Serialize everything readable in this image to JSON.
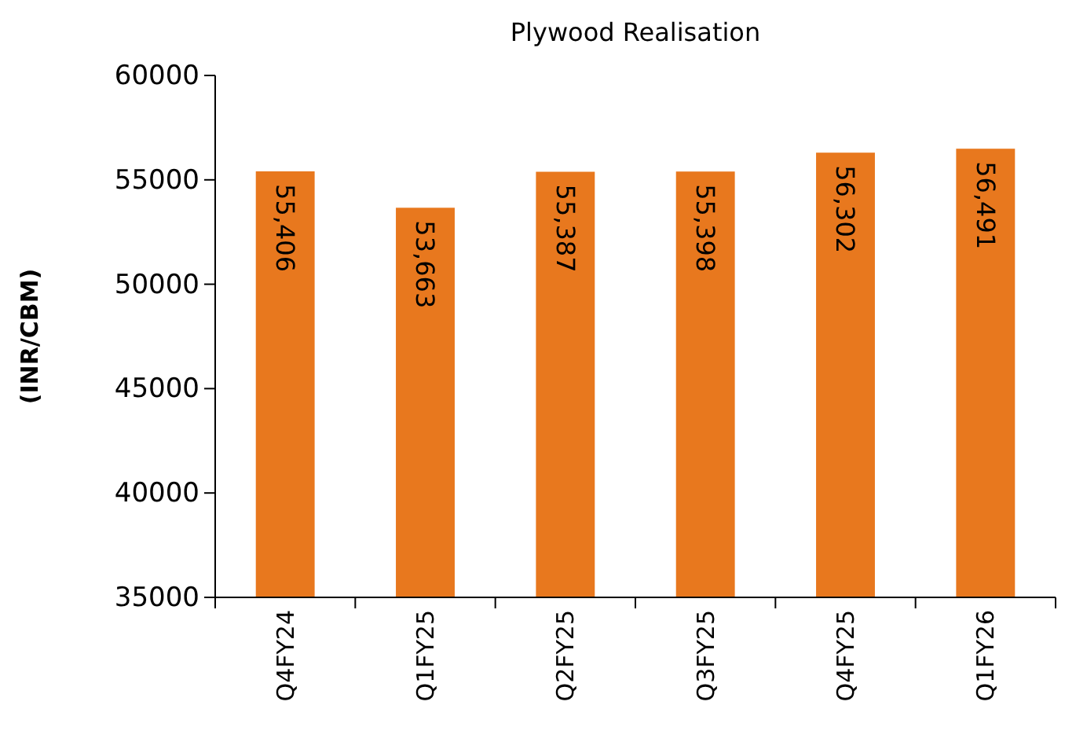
{
  "chart_data": {
    "type": "bar",
    "title": "Plywood Realisation",
    "ylabel": "(INR/CBM)",
    "categories": [
      "Q4FY24",
      "Q1FY25",
      "Q2FY25",
      "Q3FY25",
      "Q4FY25",
      "Q1FY26"
    ],
    "values": [
      55406,
      53663,
      55387,
      55398,
      56302,
      56491
    ],
    "color": "#e8781e",
    "ylim": [
      35000,
      60000
    ],
    "yticks": [
      35000,
      40000,
      45000,
      50000,
      55000,
      60000
    ],
    "value_labels": [
      "55,406",
      "53,663",
      "55,387",
      "55,398",
      "56,302",
      "56,491"
    ]
  }
}
